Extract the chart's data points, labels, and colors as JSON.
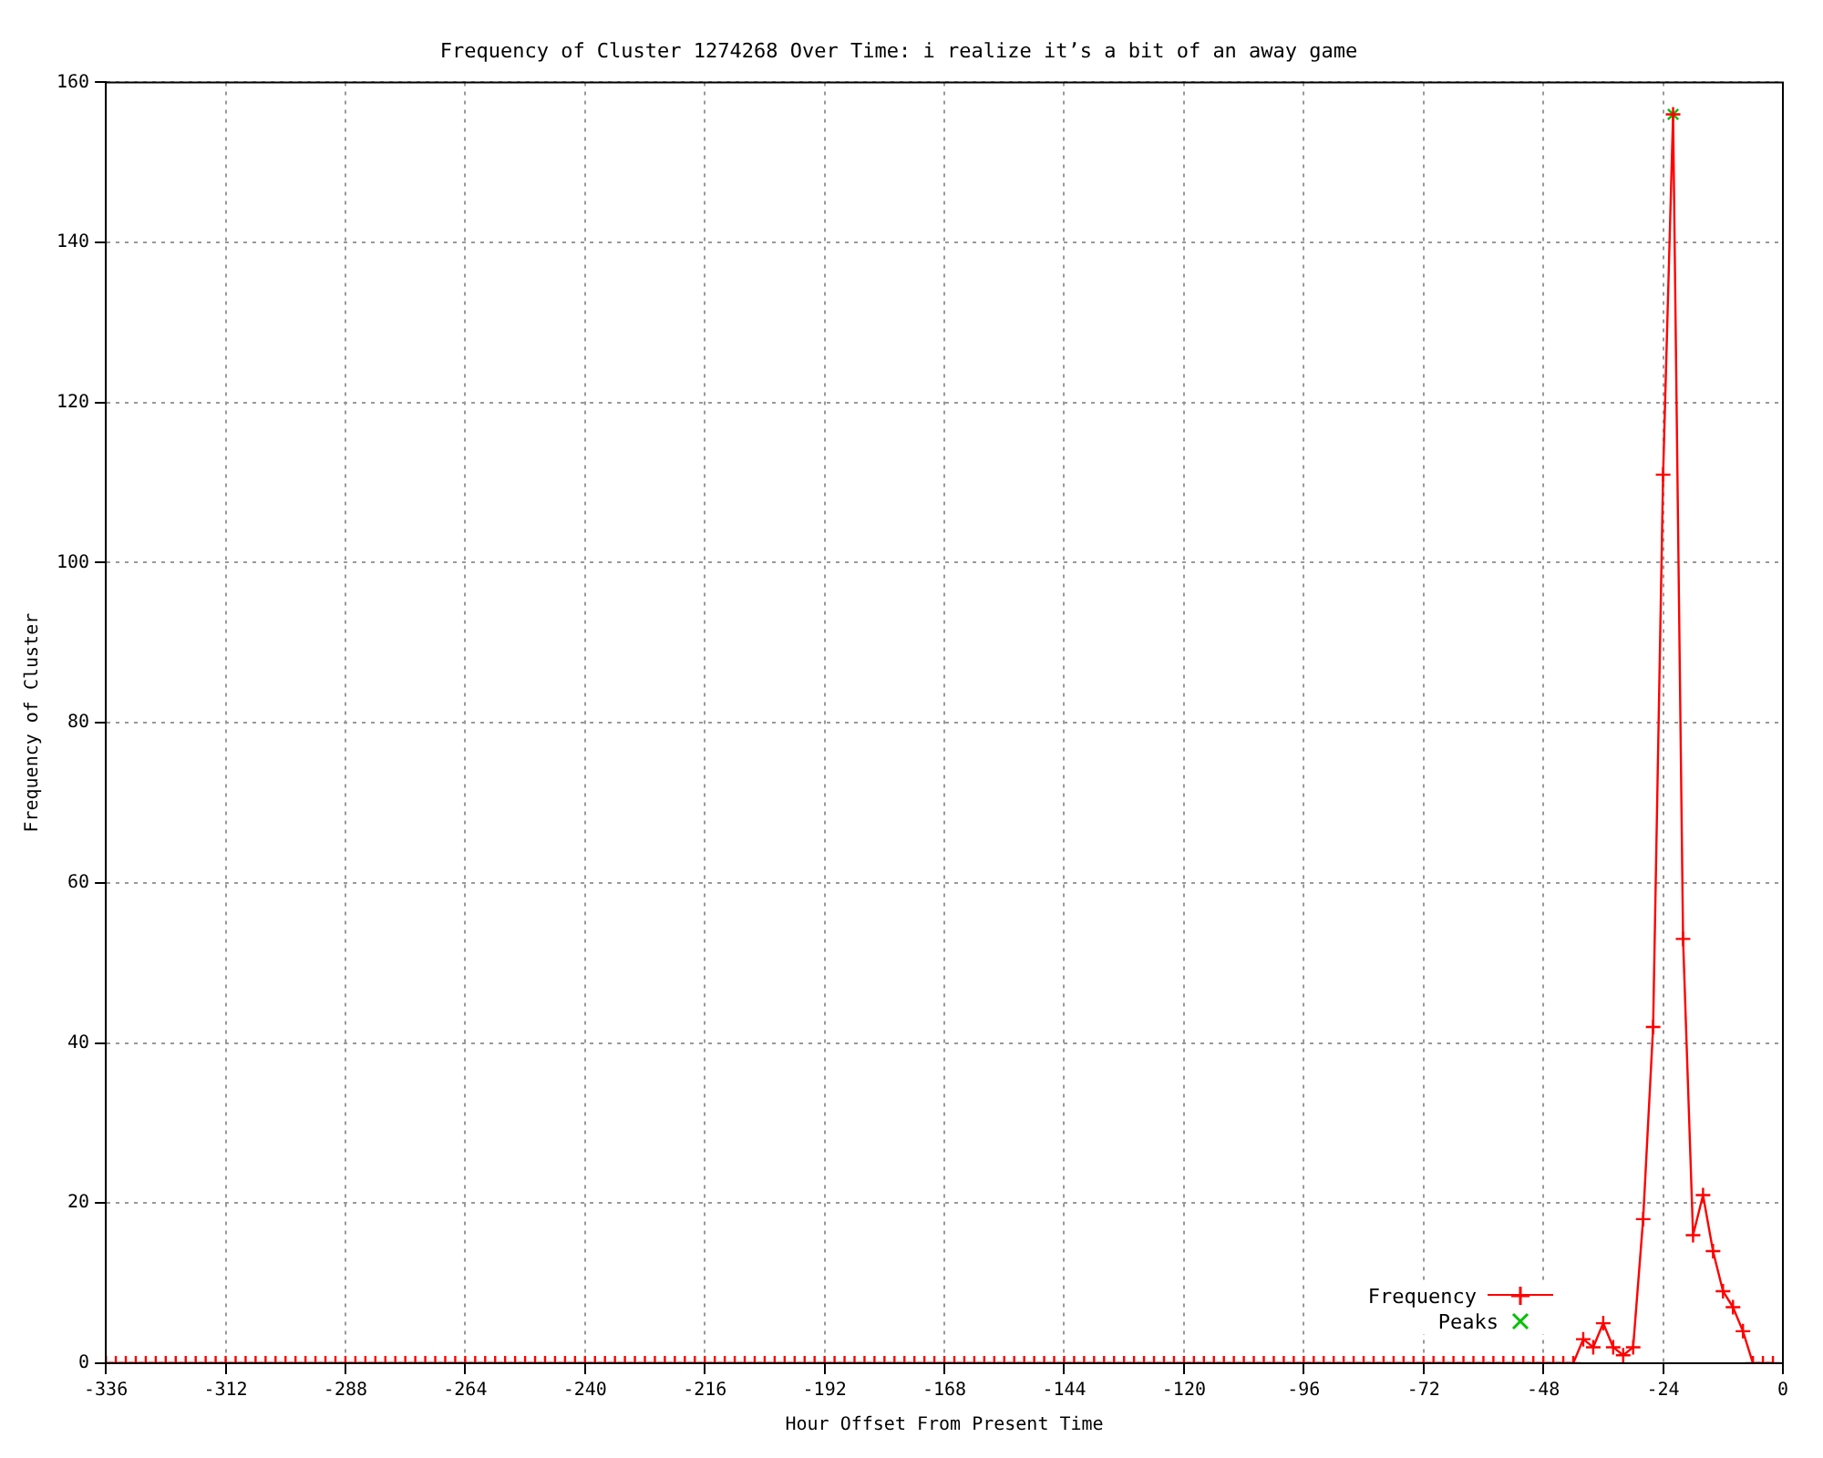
{
  "chart_data": {
    "type": "line",
    "title": "Frequency of Cluster 1274268 Over Time: i realize it’s a bit of an away game",
    "xlabel": "Hour Offset From Present Time",
    "ylabel": "Frequency of Cluster",
    "x": [
      -336,
      -334,
      -332,
      -330,
      -328,
      -326,
      -324,
      -322,
      -320,
      -318,
      -316,
      -314,
      -312,
      -310,
      -308,
      -306,
      -304,
      -302,
      -300,
      -298,
      -296,
      -294,
      -292,
      -290,
      -288,
      -286,
      -284,
      -282,
      -280,
      -278,
      -276,
      -274,
      -272,
      -270,
      -268,
      -266,
      -264,
      -262,
      -260,
      -258,
      -256,
      -254,
      -252,
      -250,
      -248,
      -246,
      -244,
      -242,
      -240,
      -238,
      -236,
      -234,
      -232,
      -230,
      -228,
      -226,
      -224,
      -222,
      -220,
      -218,
      -216,
      -214,
      -212,
      -210,
      -208,
      -206,
      -204,
      -202,
      -200,
      -198,
      -196,
      -194,
      -192,
      -190,
      -188,
      -186,
      -184,
      -182,
      -180,
      -178,
      -176,
      -174,
      -172,
      -170,
      -168,
      -166,
      -164,
      -162,
      -160,
      -158,
      -156,
      -154,
      -152,
      -150,
      -148,
      -146,
      -144,
      -142,
      -140,
      -138,
      -136,
      -134,
      -132,
      -130,
      -128,
      -126,
      -124,
      -122,
      -120,
      -118,
      -116,
      -114,
      -112,
      -110,
      -108,
      -106,
      -104,
      -102,
      -100,
      -98,
      -96,
      -94,
      -92,
      -90,
      -88,
      -86,
      -84,
      -82,
      -80,
      -78,
      -76,
      -74,
      -72,
      -70,
      -68,
      -66,
      -64,
      -62,
      -60,
      -58,
      -56,
      -54,
      -52,
      -50,
      -48,
      -46,
      -44,
      -42,
      -40,
      -38,
      -36,
      -34,
      -32,
      -30,
      -28,
      -26,
      -24,
      -22,
      -20,
      -18,
      -16,
      -14,
      -12,
      -10,
      -8,
      -6,
      -4,
      -2
    ],
    "series": [
      {
        "name": "Frequency",
        "type": "line",
        "color": "#ff0000",
        "marker": "cross",
        "values": [
          0,
          0,
          0,
          0,
          0,
          0,
          0,
          0,
          0,
          0,
          0,
          0,
          0,
          0,
          0,
          0,
          0,
          0,
          0,
          0,
          0,
          0,
          0,
          0,
          0,
          0,
          0,
          0,
          0,
          0,
          0,
          0,
          0,
          0,
          0,
          0,
          0,
          0,
          0,
          0,
          0,
          0,
          0,
          0,
          0,
          0,
          0,
          0,
          0,
          0,
          0,
          0,
          0,
          0,
          0,
          0,
          0,
          0,
          0,
          0,
          0,
          0,
          0,
          0,
          0,
          0,
          0,
          0,
          0,
          0,
          0,
          0,
          0,
          0,
          0,
          0,
          0,
          0,
          0,
          0,
          0,
          0,
          0,
          0,
          0,
          0,
          0,
          0,
          0,
          0,
          0,
          0,
          0,
          0,
          0,
          0,
          0,
          0,
          0,
          0,
          0,
          0,
          0,
          0,
          0,
          0,
          0,
          0,
          0,
          0,
          0,
          0,
          0,
          0,
          0,
          0,
          0,
          0,
          0,
          0,
          0,
          0,
          0,
          0,
          0,
          0,
          0,
          0,
          0,
          0,
          0,
          0,
          0,
          0,
          0,
          0,
          0,
          0,
          0,
          0,
          0,
          0,
          0,
          0,
          0,
          0,
          0,
          0,
          3,
          2,
          5,
          2,
          1,
          2,
          18,
          42,
          111,
          156,
          53,
          16,
          21,
          14,
          9,
          7,
          4,
          0,
          0,
          0
        ]
      },
      {
        "name": "Peaks",
        "type": "scatter",
        "color": "#00c000",
        "marker": "crossRot",
        "x": [
          -22
        ],
        "values": [
          156
        ]
      }
    ],
    "xlim": [
      -336,
      0
    ],
    "xticks": [
      -336,
      -312,
      -288,
      -264,
      -240,
      -216,
      -192,
      -168,
      -144,
      -120,
      -96,
      -72,
      -48,
      -24,
      0
    ],
    "ylim": [
      0,
      160
    ],
    "yticks": [
      0,
      20,
      40,
      60,
      80,
      100,
      120,
      140,
      160
    ],
    "grid": true,
    "legend": "bottom right"
  }
}
